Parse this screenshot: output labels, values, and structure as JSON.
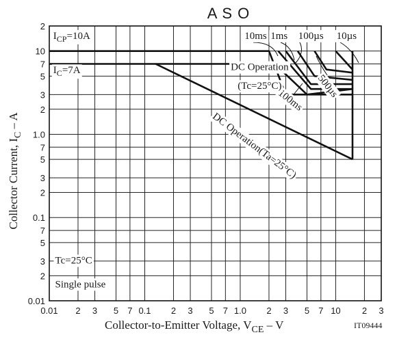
{
  "chart_data": {
    "type": "line",
    "title": "A S O",
    "xlabel": "Collector-to-Emitter Voltage, V",
    "xlabel_sub": "CE",
    "xlabel_tail": " – V",
    "ylabel": "Collector Current, I",
    "ylabel_sub": "C",
    "ylabel_tail": " – A",
    "figure_id": "IT09444",
    "x_scale": "log",
    "y_scale": "log",
    "xlim": [
      0.01,
      30
    ],
    "ylim": [
      0.01,
      20
    ],
    "grid": true,
    "x_ticks": [
      {
        "v": 0.01,
        "t": "0.01"
      },
      {
        "v": 0.02,
        "t": "2"
      },
      {
        "v": 0.03,
        "t": "3"
      },
      {
        "v": 0.05,
        "t": "5"
      },
      {
        "v": 0.07,
        "t": "7"
      },
      {
        "v": 0.1,
        "t": "0.1"
      },
      {
        "v": 0.2,
        "t": "2"
      },
      {
        "v": 0.3,
        "t": "3"
      },
      {
        "v": 0.5,
        "t": "5"
      },
      {
        "v": 0.7,
        "t": "7"
      },
      {
        "v": 1,
        "t": "1.0"
      },
      {
        "v": 2,
        "t": "2"
      },
      {
        "v": 3,
        "t": "3"
      },
      {
        "v": 5,
        "t": "5"
      },
      {
        "v": 7,
        "t": "7"
      },
      {
        "v": 10,
        "t": "10"
      },
      {
        "v": 20,
        "t": "2"
      },
      {
        "v": 30,
        "t": "3"
      }
    ],
    "y_ticks": [
      {
        "v": 0.01,
        "t": "0.01"
      },
      {
        "v": 0.02,
        "t": "2"
      },
      {
        "v": 0.03,
        "t": "3"
      },
      {
        "v": 0.05,
        "t": "5"
      },
      {
        "v": 0.07,
        "t": "7"
      },
      {
        "v": 0.1,
        "t": "0.1"
      },
      {
        "v": 0.2,
        "t": "2"
      },
      {
        "v": 0.3,
        "t": "3"
      },
      {
        "v": 0.5,
        "t": "5"
      },
      {
        "v": 0.7,
        "t": "7"
      },
      {
        "v": 1,
        "t": "1.0"
      },
      {
        "v": 2,
        "t": "2"
      },
      {
        "v": 3,
        "t": "3"
      },
      {
        "v": 5,
        "t": "5"
      },
      {
        "v": 7,
        "t": "7"
      },
      {
        "v": 10,
        "t": "10"
      },
      {
        "v": 20,
        "t": "2"
      }
    ],
    "series": [
      {
        "points": [
          [
            0.01,
            10
          ],
          [
            2,
            10
          ],
          [
            3,
            3
          ],
          [
            15,
            3
          ]
        ]
      },
      {
        "points": [
          [
            0.01,
            7
          ],
          [
            0.13,
            7
          ],
          [
            15,
            0.5
          ]
        ]
      },
      {
        "points": [
          [
            0.13,
            7
          ],
          [
            2.3,
            7
          ],
          [
            5,
            3
          ],
          [
            15,
            3.5
          ]
        ]
      },
      {
        "points": [
          [
            2.5,
            10
          ],
          [
            5.5,
            3.5
          ],
          [
            15,
            3.5
          ]
        ]
      },
      {
        "points": [
          [
            3,
            10
          ],
          [
            5.5,
            4
          ],
          [
            15,
            4
          ]
        ]
      },
      {
        "points": [
          [
            4,
            10
          ],
          [
            6,
            5
          ],
          [
            15,
            4.5
          ]
        ]
      },
      {
        "points": [
          [
            6,
            10
          ],
          [
            8,
            6
          ],
          [
            15,
            5.5
          ]
        ]
      },
      {
        "points": [
          [
            10,
            10
          ],
          [
            15,
            6
          ]
        ]
      },
      {
        "points": [
          [
            15,
            10
          ],
          [
            15,
            0.5
          ]
        ]
      }
    ],
    "annotations": [
      {
        "id": "icp",
        "text": "I",
        "sub": "CP",
        "tail": "=10A",
        "x": 0.011,
        "y": 14,
        "anchor": "start",
        "angle": 0,
        "font": 15
      },
      {
        "id": "ic",
        "text": "I",
        "sub": "C",
        "tail": "=7A",
        "x": 0.011,
        "y": 5.4,
        "anchor": "start",
        "angle": 0,
        "font": 15
      },
      {
        "id": "t10ms",
        "text": "10ms",
        "x": 1.45,
        "y": 14,
        "anchor": "middle",
        "angle": 0,
        "font": 15
      },
      {
        "id": "t1ms",
        "text": "1ms",
        "x": 2.55,
        "y": 14,
        "anchor": "middle",
        "angle": 0,
        "font": 15
      },
      {
        "id": "t100us",
        "text": "100µs",
        "x": 5.5,
        "y": 14,
        "anchor": "middle",
        "angle": 0,
        "font": 15
      },
      {
        "id": "t10us",
        "text": "10µs",
        "x": 13,
        "y": 14,
        "anchor": "middle",
        "angle": 0,
        "font": 15
      },
      {
        "id": "t500us",
        "text": "500µs",
        "x": 7.8,
        "y": 3.6,
        "anchor": "middle",
        "angle": 52,
        "font": 15
      },
      {
        "id": "t100ms",
        "text": "100ms",
        "x": 3.2,
        "y": 2.4,
        "anchor": "middle",
        "angle": 38,
        "font": 15
      },
      {
        "id": "dcop",
        "text": "DC Operation",
        "x": 1.6,
        "y": 5.9,
        "anchor": "middle",
        "angle": 0,
        "font": 16
      },
      {
        "id": "dcoptc",
        "text": "(Tc=25°C)",
        "x": 1.6,
        "y": 3.5,
        "anchor": "middle",
        "angle": 0,
        "font": 16
      },
      {
        "id": "dcopta",
        "text": "DC Operation(Ta=25°C)",
        "x": 1.35,
        "y": 0.68,
        "anchor": "middle",
        "angle": 37,
        "font": 16
      },
      {
        "id": "tc",
        "text": "Tc=25°C",
        "x": 0.0115,
        "y": 0.028,
        "anchor": "start",
        "angle": 0,
        "font": 15
      },
      {
        "id": "sp",
        "text": "Single pulse",
        "x": 0.0115,
        "y": 0.0145,
        "anchor": "start",
        "angle": 0,
        "font": 15
      }
    ]
  }
}
